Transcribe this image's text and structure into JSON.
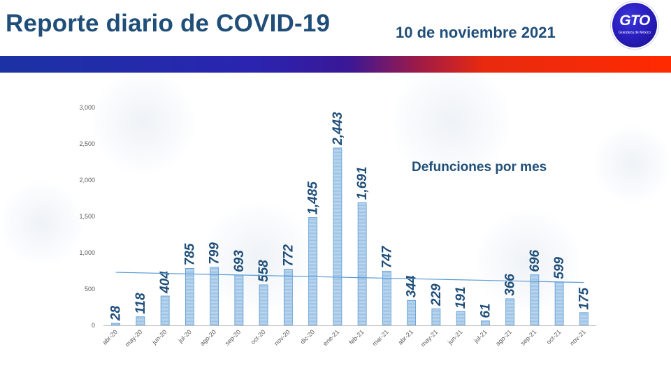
{
  "header": {
    "title": "Reporte diario de COVID-19",
    "date": "10 de noviembre 2021",
    "logo_text": "GTO",
    "logo_subtext": "Grandeza de México"
  },
  "colors": {
    "title": "#1f4e79",
    "bar_fill": "#9dc3e6",
    "bar_stroke": "#5b9bd5",
    "trendline": "#5b9bd5"
  },
  "chart_data": {
    "type": "bar",
    "title": "Defunciones por mes",
    "categories": [
      "abr-20",
      "may-20",
      "jun-20",
      "jul-20",
      "ago-20",
      "sep-20",
      "oct-20",
      "nov-20",
      "dic-20",
      "ene-21",
      "feb-21",
      "mar-21",
      "abr-21",
      "may-21",
      "jun-21",
      "jul-21",
      "ago-21",
      "sep-21",
      "oct-21",
      "nov-21"
    ],
    "values": [
      28,
      118,
      404,
      785,
      799,
      693,
      558,
      772,
      1485,
      2443,
      1691,
      747,
      344,
      229,
      191,
      61,
      366,
      696,
      599,
      175
    ],
    "value_labels": [
      "28",
      "118",
      "404",
      "785",
      "799",
      "693",
      "558",
      "772",
      "1,485",
      "2,443",
      "1,691",
      "747",
      "344",
      "229",
      "191",
      "61",
      "366",
      "696",
      "599",
      "175"
    ],
    "ylim": [
      0,
      3000
    ],
    "yticks": [
      0,
      500,
      1000,
      1500,
      2000,
      2500,
      3000
    ],
    "ytick_labels": [
      "0",
      "500",
      "1,000",
      "1,500",
      "2,000",
      "2,500",
      "3,000"
    ],
    "trendline": {
      "type": "linear",
      "start": 730,
      "end": 590
    },
    "xlabel": "",
    "ylabel": "",
    "grid": false
  }
}
